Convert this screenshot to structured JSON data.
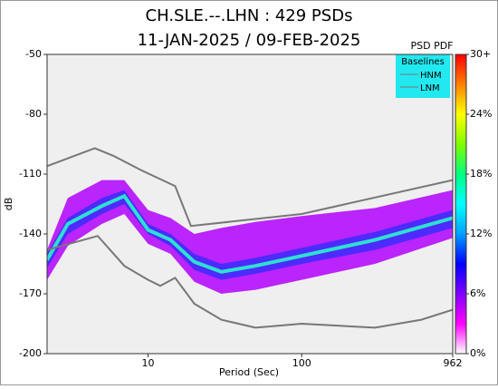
{
  "chart_data": {
    "type": "psd_pdf",
    "title": "CH.SLE.--.LHN : 429 PSDs",
    "subtitle": "11-JAN-2025 / 09-FEB-2025",
    "x_label": "Period (Sec)",
    "y_label": "dB",
    "xlim": [
      2.2,
      962
    ],
    "log_x": true,
    "xticks": [
      10,
      100,
      962
    ],
    "ylim": [
      -200,
      -50
    ],
    "yticks": [
      -50,
      -80,
      -110,
      -140,
      -170,
      -200
    ],
    "legend_title": "Baselines",
    "series": [
      {
        "name": "HNM",
        "color": "#777777",
        "x": [
          2.2,
          4.5,
          6,
          9,
          15,
          19,
          100,
          962
        ],
        "values": [
          -106,
          -97,
          -101,
          -108,
          -116,
          -136,
          -130,
          -113
        ]
      },
      {
        "name": "LNM",
        "color": "#777777",
        "x": [
          2.2,
          4.7,
          7,
          10,
          12,
          15,
          20,
          30,
          50,
          100,
          300,
          600,
          962
        ],
        "values": [
          -148,
          -141,
          -156,
          -163,
          -166,
          -162,
          -175,
          -183,
          -187,
          -185,
          -187,
          -183,
          -178
        ]
      }
    ],
    "density": {
      "x": [
        2.2,
        3,
        5,
        7,
        10,
        14,
        20,
        30,
        50,
        100,
        300,
        962
      ],
      "bands": [
        {
          "color": "#b000ff",
          "lower": [
            -163,
            -146,
            -135,
            -130,
            -145,
            -150,
            -164,
            -170,
            -168,
            -163,
            -155,
            -142
          ],
          "upper": [
            -148,
            -122,
            -113,
            -113,
            -128,
            -132,
            -140,
            -137,
            -134,
            -131,
            -127,
            -118
          ]
        },
        {
          "color": "#3a2cff",
          "lower": [
            -157,
            -140,
            -130,
            -125,
            -140,
            -146,
            -158,
            -163,
            -160,
            -155,
            -148,
            -137
          ],
          "upper": [
            -150,
            -132,
            -122,
            -118,
            -135,
            -140,
            -150,
            -155,
            -152,
            -147,
            -139,
            -128
          ]
        }
      ],
      "mode": [
        -153,
        -135,
        -126,
        -121,
        -138,
        -143,
        -154,
        -159,
        -156,
        -151,
        -143,
        -132
      ],
      "mode_color": "#2ee0d0"
    },
    "colorbar_title": "PSD PDF",
    "clim": [
      0,
      30
    ],
    "cticks": [
      {
        "value": 0,
        "label": "0%"
      },
      {
        "value": 6,
        "label": "6%"
      },
      {
        "value": 12,
        "label": "12%"
      },
      {
        "value": 18,
        "label": "18%"
      },
      {
        "value": 24,
        "label": "24%"
      },
      {
        "value": 30,
        "label": "30+"
      }
    ],
    "colormap": [
      "#ffffff",
      "#ff00ff",
      "#8000ff",
      "#0000ff",
      "#00a0ff",
      "#00ffff",
      "#00ff80",
      "#80ff00",
      "#ffff00",
      "#ff8000",
      "#ff0000"
    ]
  }
}
